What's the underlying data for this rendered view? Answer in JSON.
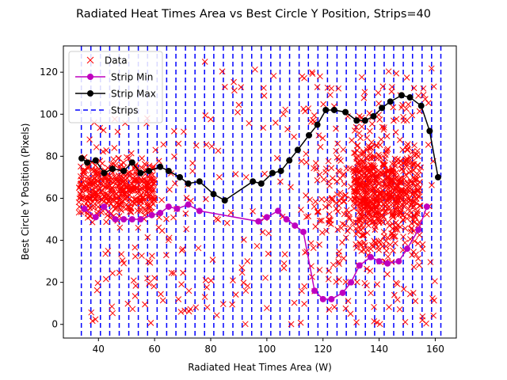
{
  "chart_data": {
    "type": "scatter",
    "title": "Radiated Heat Times Area vs Best Circle Y Position, Strips=40",
    "xlabel": "Radiated Heat Times Area (W)",
    "ylabel": "Best Circle Y Position (Pixels)",
    "xlim": [
      27.5,
      167.5
    ],
    "ylim": [
      -6.5,
      132.5
    ],
    "xticks": [
      40,
      60,
      80,
      100,
      120,
      140,
      160
    ],
    "yticks": [
      0,
      20,
      40,
      60,
      80,
      100,
      120
    ],
    "legend": {
      "position": "upper-left",
      "entries": [
        "Data",
        "Strip Min",
        "Strip Max",
        "Strips"
      ]
    },
    "colors": {
      "data": "#ff0000",
      "strip_min": "#bf00bf",
      "strip_max": "#000000",
      "strips": "#0000ff"
    },
    "strips_x": [
      33.9,
      37.3,
      40.7,
      44.0,
      47.4,
      50.8,
      54.2,
      57.5,
      60.9,
      64.3,
      67.6,
      71.0,
      74.4,
      77.8,
      81.1,
      84.5,
      87.9,
      91.2,
      94.6,
      98.0,
      101.4,
      104.7,
      108.1,
      111.5,
      114.8,
      118.2,
      121.6,
      125.0,
      128.3,
      131.7,
      135.1,
      138.4,
      141.8,
      145.2,
      148.6,
      151.9,
      155.3,
      158.7,
      162.0
    ],
    "strip_min": {
      "name": "Strip Min",
      "x": [
        35,
        39,
        42,
        46,
        49,
        52,
        55,
        59,
        62,
        65,
        68,
        72,
        76,
        97,
        100,
        104,
        107,
        110,
        113,
        117,
        120,
        123,
        127,
        130,
        133,
        137,
        140,
        143,
        147,
        150,
        154,
        157
      ],
      "y": [
        55,
        51,
        56,
        50,
        50,
        50,
        50,
        52,
        53,
        56,
        55,
        57,
        54,
        49,
        51,
        54,
        50,
        47,
        44,
        16,
        12,
        12,
        15,
        20,
        28,
        32,
        30,
        29,
        30,
        36,
        45,
        56
      ]
    },
    "strip_max": {
      "name": "Strip Max",
      "x": [
        34,
        36,
        39,
        42,
        45,
        49,
        52,
        55,
        58,
        62,
        65,
        69,
        72,
        76,
        81,
        85,
        95,
        98,
        102,
        105,
        108,
        111,
        115,
        118,
        121,
        124,
        128,
        132,
        135,
        138,
        141,
        144,
        148,
        151,
        155,
        158,
        161
      ],
      "y": [
        79,
        77,
        78,
        72,
        74,
        73,
        77,
        72,
        73,
        75,
        73,
        70,
        67,
        68,
        62,
        59,
        68,
        67,
        72,
        73,
        78,
        83,
        90,
        95,
        102,
        102,
        101,
        97,
        97,
        99,
        103,
        106,
        109,
        108,
        104,
        92,
        70
      ]
    },
    "scatter_clusters": [
      {
        "region": "left-dense",
        "x_range": [
          33,
          60
        ],
        "y_center": 65,
        "y_spread": 10,
        "count": 420
      },
      {
        "region": "left-sparse",
        "x_range": [
          36,
          75
        ],
        "y_range": [
          0,
          100
        ],
        "count": 110
      },
      {
        "region": "middle",
        "x_range": [
          75,
          110
        ],
        "y_range": [
          0,
          126
        ],
        "count": 70
      },
      {
        "region": "right-dense",
        "x_range": [
          115,
          155
        ],
        "y_center": 62,
        "y_spread": 18,
        "count": 700
      },
      {
        "region": "right-sparse",
        "x_range": [
          112,
          160
        ],
        "y_range": [
          0,
          122
        ],
        "count": 220
      }
    ]
  }
}
